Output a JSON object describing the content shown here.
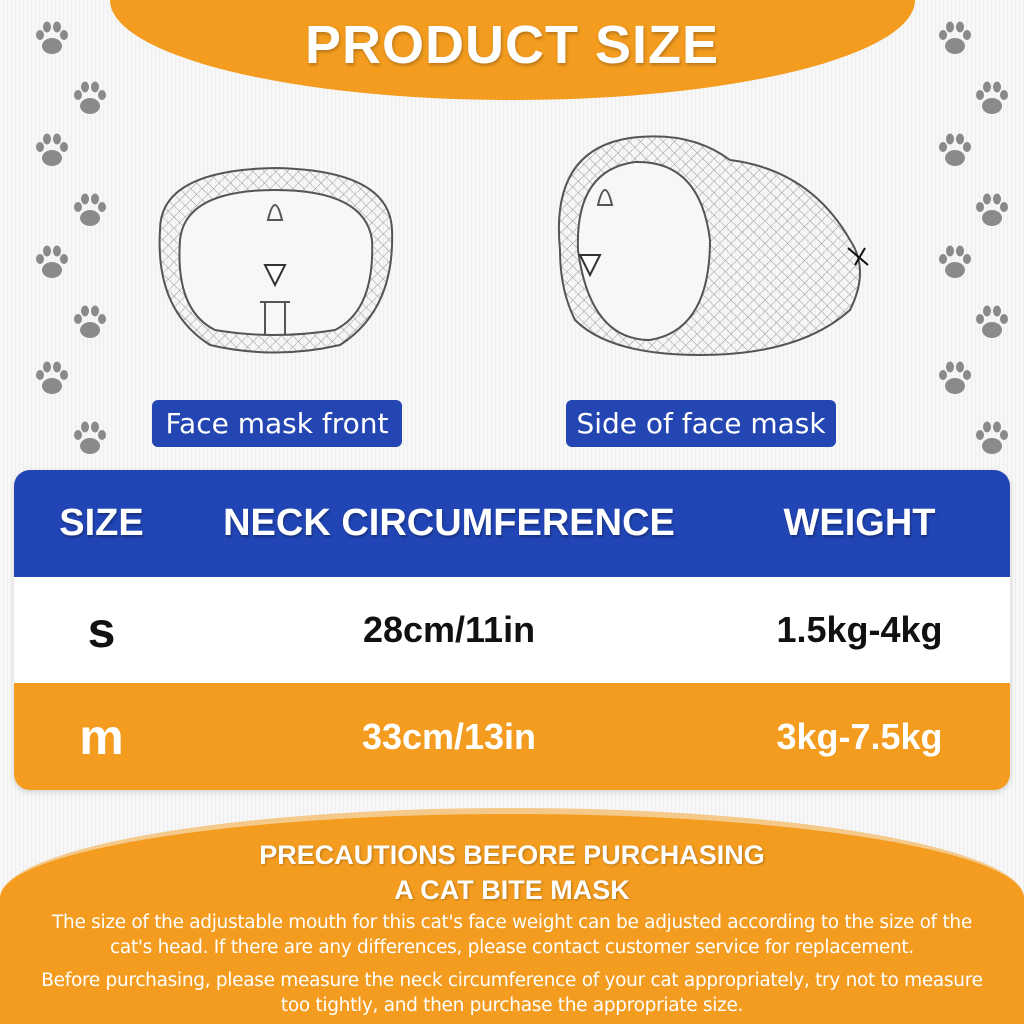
{
  "title": "PRODUCT SIZE",
  "labels": {
    "front": "Face mask front",
    "side": "Side of face mask"
  },
  "table": {
    "headers": [
      "SIZE",
      "NECK CIRCUMFERENCE",
      "WEIGHT"
    ],
    "rows": [
      {
        "size": "s",
        "neck": "28cm/11in",
        "weight": "1.5kg-4kg"
      },
      {
        "size": "m",
        "neck": "33cm/13in",
        "weight": "3kg-7.5kg"
      }
    ]
  },
  "precautions": {
    "heading_line1": "PRECAUTIONS BEFORE PURCHASING",
    "heading_line2": "A CAT BITE MASK",
    "paragraph1_line1": "The size of the adjustable mouth for this cat's face weight can be adjusted according to the size of the",
    "paragraph1_line2": "cat's head. If there are any differences, please contact customer service for replacement.",
    "paragraph2_line1": "Before purchasing, please measure the neck circumference of your cat appropriately, try not to measure",
    "paragraph2_line2": "too tightly, and then purchase the appropriate size."
  },
  "colors": {
    "orange": "#f39c1f",
    "blue": "#2145b5",
    "paw": "#8a8a8a"
  },
  "icons": {
    "decoration": "paw-print-icon"
  }
}
